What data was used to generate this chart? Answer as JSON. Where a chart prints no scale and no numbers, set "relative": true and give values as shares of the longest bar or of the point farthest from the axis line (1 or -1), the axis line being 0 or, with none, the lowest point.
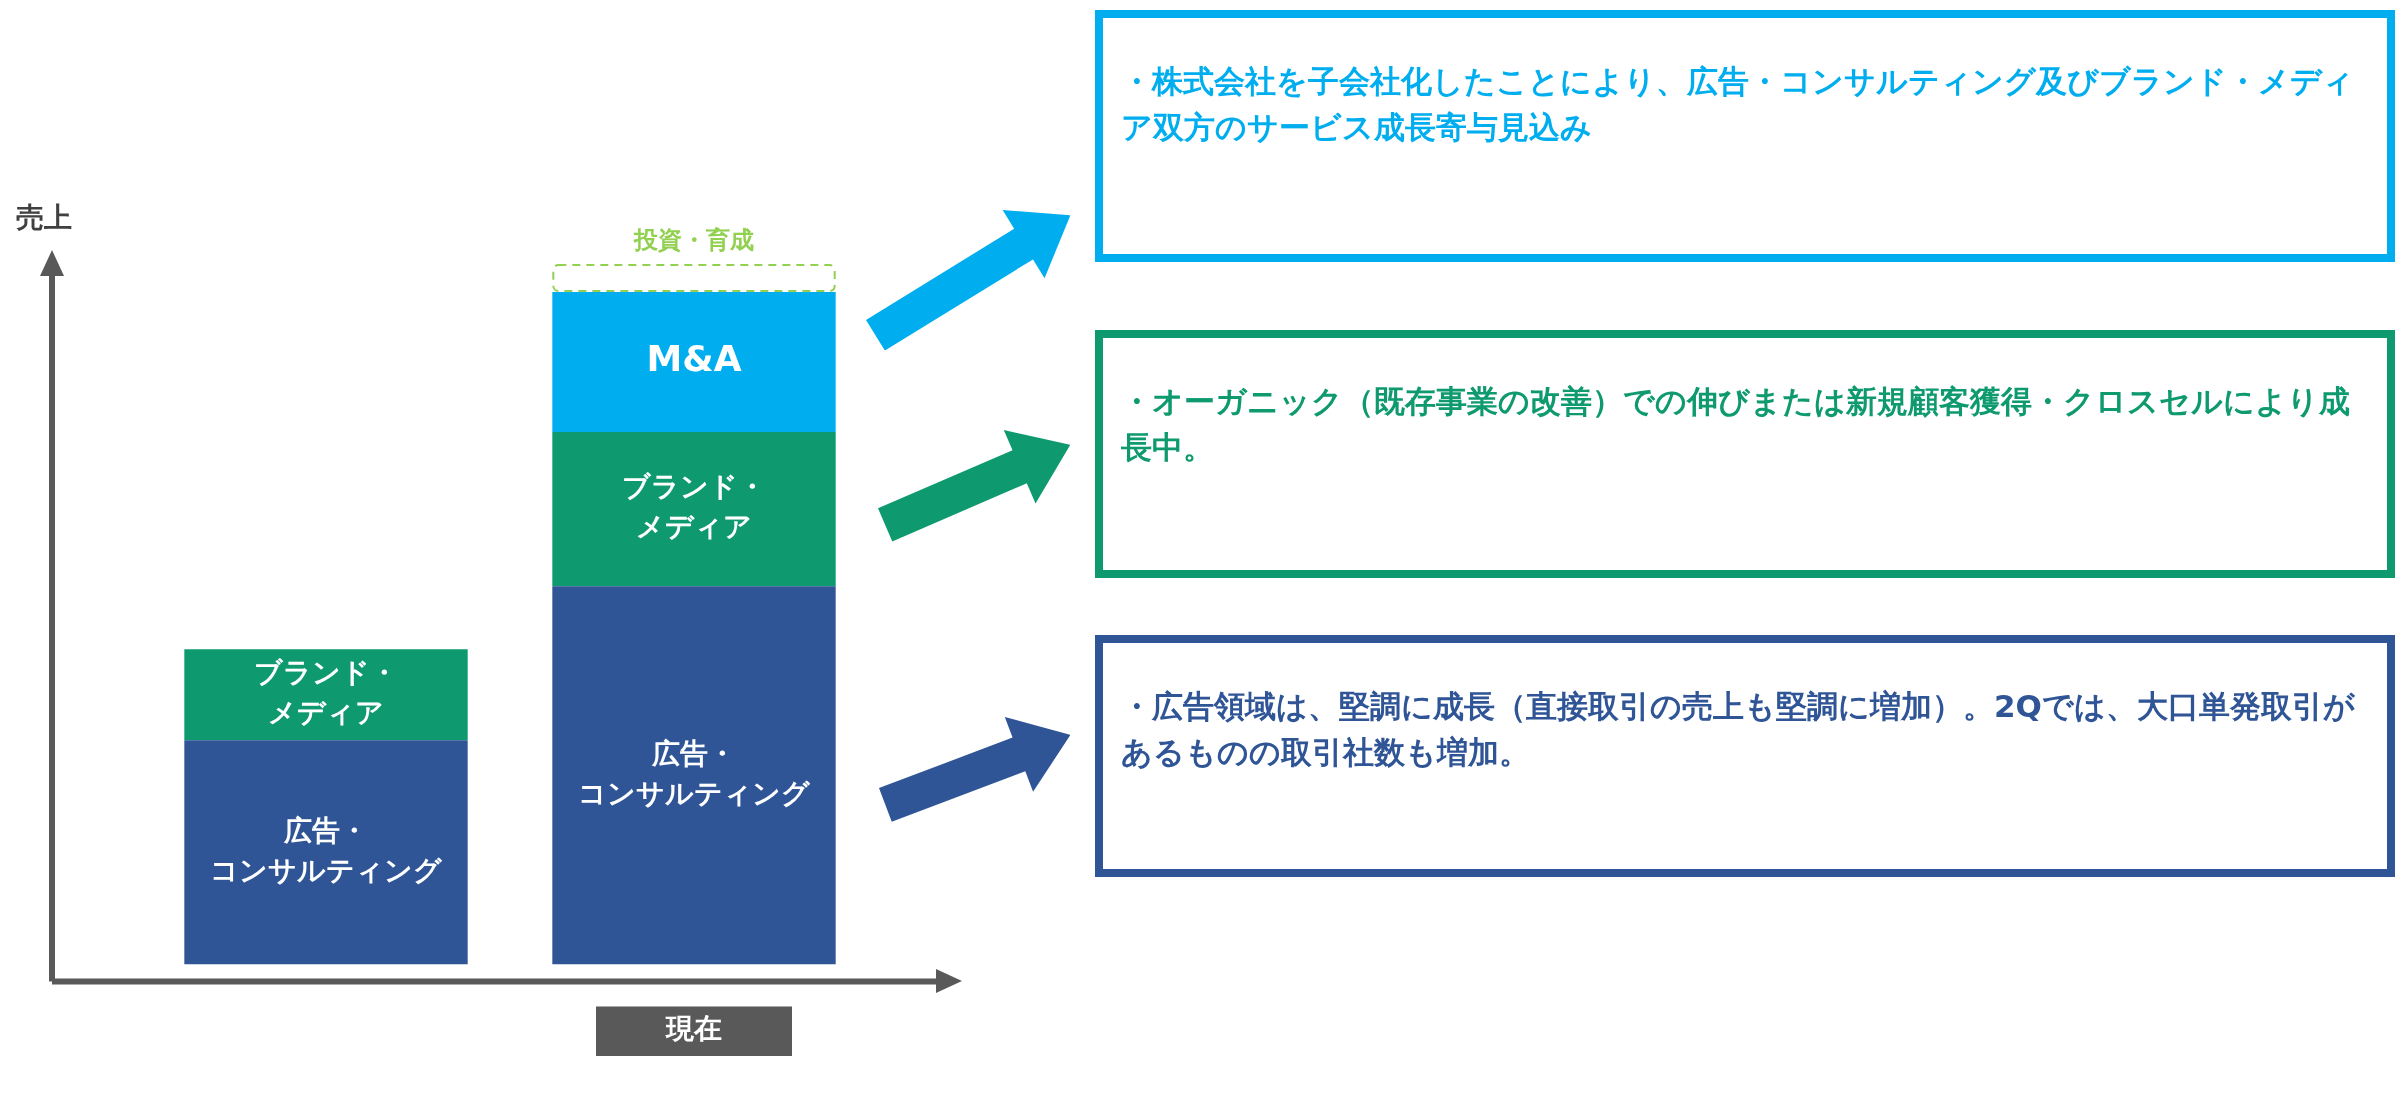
{
  "chart_data": {
    "type": "bar",
    "stacked": true,
    "relative": true,
    "ylabel": "売上",
    "categories": [
      null,
      "現在"
    ],
    "series": [
      {
        "name": "広告・コンサルティング",
        "color": "#2f5597",
        "values": [
          0.32,
          0.54
        ]
      },
      {
        "name": "ブランド・メディア",
        "color": "#0e9a6e",
        "values": [
          0.13,
          0.22
        ]
      },
      {
        "name": "M&A",
        "color": "#00aeef",
        "values": [
          null,
          0.2
        ]
      },
      {
        "name": "投資・育成",
        "color": "#92d050",
        "line_style": "dashed",
        "values": [
          null,
          0.04
        ]
      }
    ],
    "legend": false,
    "grid": false,
    "annotations": [
      "・株式会社を子会社化したことにより、広告・コンサルティング及びブランド・メディア双方のサービス成長寄与見込み",
      "・オーガニック（既存事業の改善）での伸びまたは新規顧客獲得・クロスセルにより成長中。",
      "・広告領域は、堅調に成長（直接取引の売上も堅調に増加）。2Qでは、大口単発取引があるものの取引社数も増加。"
    ]
  }
}
